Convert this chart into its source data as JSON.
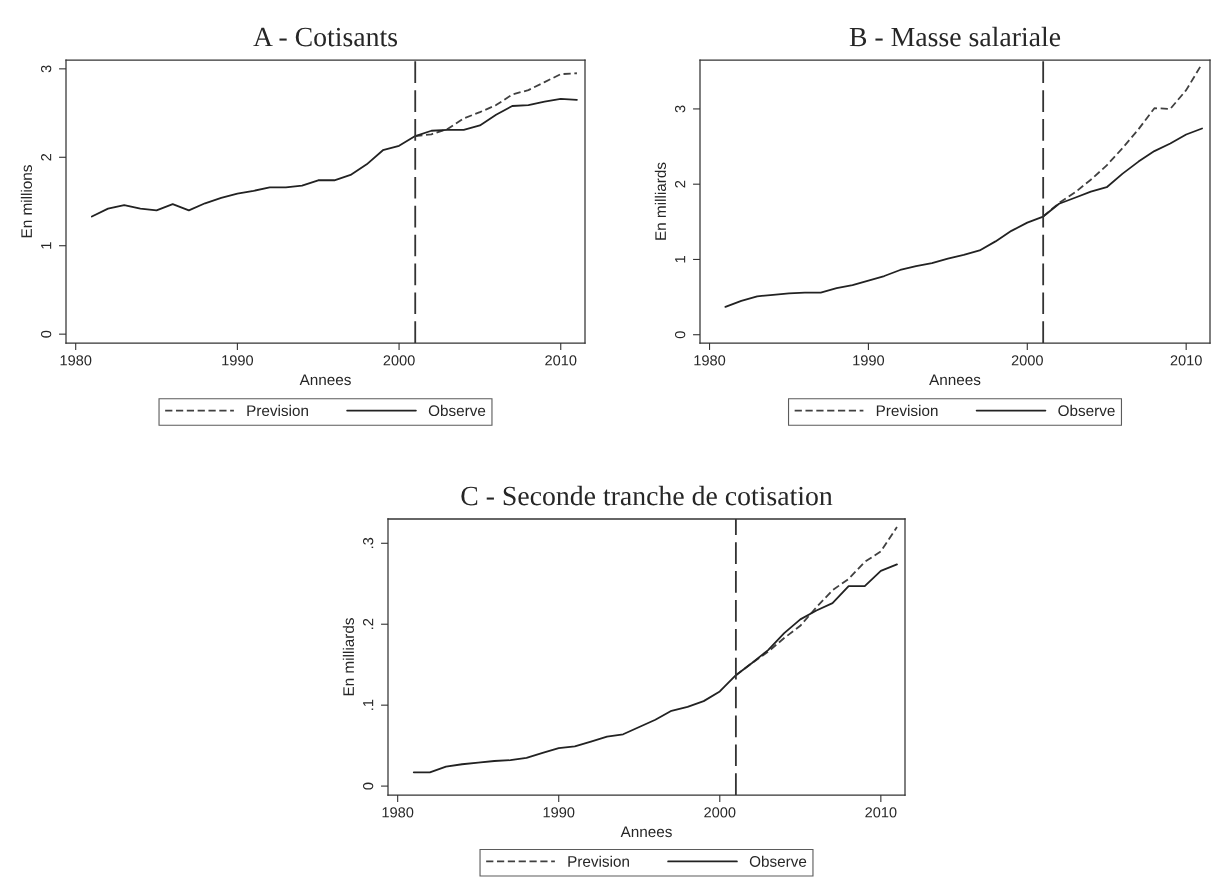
{
  "chart_data": [
    {
      "type": "line",
      "title": "A - Cotisants",
      "xlabel": "Annees",
      "ylabel": "En millions",
      "x": [
        1981,
        1982,
        1983,
        1984,
        1985,
        1986,
        1987,
        1988,
        1989,
        1990,
        1991,
        1992,
        1993,
        1994,
        1995,
        1996,
        1997,
        1998,
        1999,
        2000,
        2001,
        2002,
        2003,
        2004,
        2005,
        2006,
        2007,
        2008,
        2009,
        2010,
        2011
      ],
      "series": [
        {
          "name": "Prevision",
          "color": "#404040",
          "line_style": "dashed",
          "values": [
            null,
            null,
            null,
            null,
            null,
            null,
            null,
            null,
            null,
            null,
            null,
            null,
            null,
            null,
            null,
            null,
            null,
            null,
            null,
            null,
            2.24,
            2.26,
            2.32,
            2.44,
            2.51,
            2.59,
            2.71,
            2.76,
            2.85,
            2.94,
            2.95
          ]
        },
        {
          "name": "Observe",
          "color": "#222222",
          "line_style": "solid",
          "values": [
            1.33,
            1.42,
            1.46,
            1.42,
            1.4,
            1.47,
            1.4,
            1.48,
            1.54,
            1.59,
            1.62,
            1.66,
            1.66,
            1.68,
            1.74,
            1.74,
            1.8,
            1.92,
            2.08,
            2.13,
            2.24,
            2.3,
            2.31,
            2.31,
            2.36,
            2.48,
            2.58,
            2.59,
            2.63,
            2.66,
            2.65
          ]
        }
      ],
      "xlim": [
        1979.4,
        2011.5
      ],
      "ylim": [
        -0.1,
        3.1
      ],
      "xticks": [
        1980,
        1990,
        2000,
        2010
      ],
      "yticks": [
        0,
        1,
        2,
        3
      ],
      "ref_lines": [
        {
          "axis": "x",
          "value": 2001,
          "color": "#333333",
          "line_style": "dashed"
        }
      ],
      "legend": "bottom",
      "grid": false
    },
    {
      "type": "line",
      "title": "B - Masse salariale",
      "xlabel": "Annees",
      "ylabel": "En milliards",
      "x": [
        1981,
        1982,
        1983,
        1984,
        1985,
        1986,
        1987,
        1988,
        1989,
        1990,
        1991,
        1992,
        1993,
        1994,
        1995,
        1996,
        1997,
        1998,
        1999,
        2000,
        2001,
        2002,
        2003,
        2004,
        2005,
        2006,
        2007,
        2008,
        2009,
        2010,
        2011
      ],
      "series": [
        {
          "name": "Prevision",
          "color": "#404040",
          "line_style": "dashed",
          "values": [
            null,
            null,
            null,
            null,
            null,
            null,
            null,
            null,
            null,
            null,
            null,
            null,
            null,
            null,
            null,
            null,
            null,
            null,
            null,
            null,
            1.57,
            1.75,
            1.89,
            2.06,
            2.25,
            2.48,
            2.73,
            3.01,
            3.0,
            3.25,
            3.6
          ]
        },
        {
          "name": "Observe",
          "color": "#222222",
          "line_style": "solid",
          "values": [
            0.37,
            0.45,
            0.51,
            0.53,
            0.55,
            0.56,
            0.56,
            0.62,
            0.66,
            0.72,
            0.78,
            0.86,
            0.91,
            0.95,
            1.01,
            1.06,
            1.12,
            1.24,
            1.38,
            1.49,
            1.57,
            1.74,
            1.82,
            1.9,
            1.96,
            2.14,
            2.3,
            2.44,
            2.54,
            2.66,
            2.74
          ]
        }
      ],
      "xlim": [
        1979.4,
        2011.5
      ],
      "ylim": [
        -0.11,
        3.65
      ],
      "xticks": [
        1980,
        1990,
        2000,
        2010
      ],
      "yticks": [
        0,
        1,
        2,
        3
      ],
      "ref_lines": [
        {
          "axis": "x",
          "value": 2001,
          "color": "#333333",
          "line_style": "dashed"
        }
      ],
      "legend": "bottom",
      "grid": false
    },
    {
      "type": "line",
      "title": "C - Seconde tranche de cotisation",
      "xlabel": "Annees",
      "ylabel": "En milliards",
      "x": [
        1981,
        1982,
        1983,
        1984,
        1985,
        1986,
        1987,
        1988,
        1989,
        1990,
        1991,
        1992,
        1993,
        1994,
        1995,
        1996,
        1997,
        1998,
        1999,
        2000,
        2001,
        2002,
        2003,
        2004,
        2005,
        2006,
        2007,
        2008,
        2009,
        2010,
        2011
      ],
      "series": [
        {
          "name": "Prevision",
          "color": "#404040",
          "line_style": "dashed",
          "values": [
            null,
            null,
            null,
            null,
            null,
            null,
            null,
            null,
            null,
            null,
            null,
            null,
            null,
            null,
            null,
            null,
            null,
            null,
            null,
            null,
            0.137,
            0.152,
            0.166,
            0.183,
            0.198,
            0.221,
            0.242,
            0.256,
            0.277,
            0.29,
            0.32
          ]
        },
        {
          "name": "Observe",
          "color": "#222222",
          "line_style": "solid",
          "values": [
            0.017,
            0.017,
            0.024,
            0.027,
            0.029,
            0.031,
            0.032,
            0.035,
            0.041,
            0.047,
            0.049,
            0.055,
            0.061,
            0.064,
            0.073,
            0.082,
            0.093,
            0.098,
            0.105,
            0.117,
            0.137,
            0.152,
            0.168,
            0.189,
            0.206,
            0.217,
            0.226,
            0.247,
            0.247,
            0.266,
            0.274
          ]
        }
      ],
      "xlim": [
        1979.4,
        2011.5
      ],
      "ylim": [
        -0.011,
        0.33
      ],
      "xticks": [
        1980,
        1990,
        2000,
        2010
      ],
      "yticks": [
        0,
        {
          "value": 0.1,
          "label": ".1"
        },
        {
          "value": 0.2,
          "label": ".2"
        },
        {
          "value": 0.3,
          "label": ".3"
        }
      ],
      "ref_lines": [
        {
          "axis": "x",
          "value": 2001,
          "color": "#333333",
          "line_style": "dashed"
        }
      ],
      "legend": "bottom",
      "grid": false
    }
  ]
}
